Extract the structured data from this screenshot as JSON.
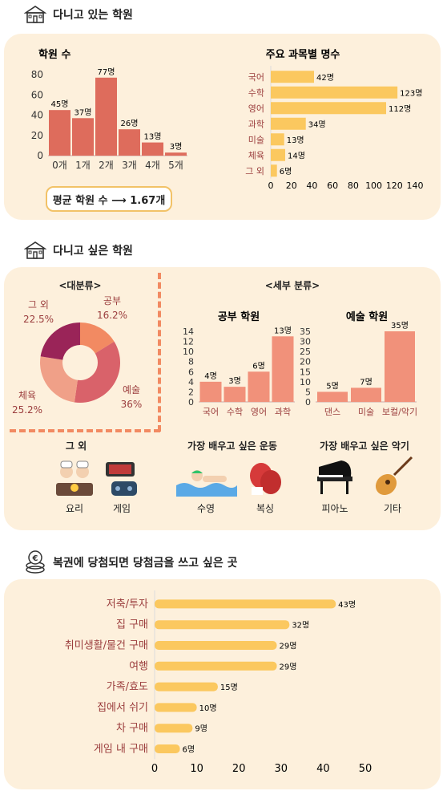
{
  "section1": {
    "title": "다니고 있는 학원",
    "chart_academies": {
      "title": "학원 수",
      "categories": [
        "0개",
        "1개",
        "2개",
        "3개",
        "4개",
        "5개"
      ],
      "values": [
        45,
        37,
        77,
        26,
        13,
        3
      ],
      "value_labels": [
        "45명",
        "37명",
        "77명",
        "26명",
        "13명",
        "3명"
      ],
      "y_ticks": [
        "0",
        "20",
        "40",
        "60",
        "80"
      ],
      "ylim": [
        0,
        80
      ]
    },
    "average": "평균 학원 수 ⟶ 1.67개",
    "chart_subjects": {
      "title": "주요 과목별 명수",
      "categories": [
        "국어",
        "수학",
        "영어",
        "과학",
        "미술",
        "체육",
        "그 외"
      ],
      "values": [
        42,
        123,
        112,
        34,
        13,
        14,
        6
      ],
      "value_labels": [
        "42명",
        "123명",
        "112명",
        "34명",
        "13명",
        "14명",
        "6명"
      ],
      "x_ticks": [
        "0",
        "20",
        "40",
        "60",
        "80",
        "100",
        "120",
        "140"
      ],
      "xlim": [
        0,
        140
      ]
    }
  },
  "section2": {
    "title": "다니고 싶은 학원",
    "big_category": {
      "title": "<대분류>",
      "slices": [
        {
          "name": "공부",
          "label": "16.2%",
          "value": 16.2,
          "color": "#f28a62"
        },
        {
          "name": "예술",
          "label": "36%",
          "value": 36,
          "color": "#d9626a"
        },
        {
          "name": "체육",
          "label": "25.2%",
          "value": 25.2,
          "color": "#f0a088"
        },
        {
          "name": "그 외",
          "label": "22.5%",
          "value": 22.5,
          "color": "#9a2458"
        }
      ]
    },
    "detail_title": "<세부 분류>",
    "study": {
      "title": "공부 학원",
      "categories": [
        "국어",
        "수학",
        "영어",
        "과학"
      ],
      "values": [
        4,
        3,
        6,
        13
      ],
      "value_labels": [
        "4명",
        "3명",
        "6명",
        "13명"
      ],
      "y_ticks": [
        "0",
        "2",
        "4",
        "6",
        "8",
        "10",
        "12",
        "14"
      ],
      "ylim": [
        0,
        14
      ]
    },
    "art": {
      "title": "예술 학원",
      "categories": [
        "댄스",
        "미술",
        "보컬/악기"
      ],
      "values": [
        5,
        7,
        35
      ],
      "value_labels": [
        "5명",
        "7명",
        "35명"
      ],
      "y_ticks": [
        "0",
        "5",
        "10",
        "15",
        "20",
        "25",
        "30",
        "35"
      ],
      "ylim": [
        0,
        35
      ]
    },
    "others": {
      "groups": [
        {
          "title": "그 외",
          "items": [
            "요리",
            "게임"
          ]
        },
        {
          "title": "가장 배우고 싶은 운동",
          "items": [
            "수영",
            "복싱"
          ]
        },
        {
          "title": "가장 배우고 싶은 악기",
          "items": [
            "피아노",
            "기타"
          ]
        }
      ]
    }
  },
  "section3": {
    "title": "복권에 당첨되면 당첨금을 쓰고 싶은 곳",
    "chart_lottery": {
      "categories": [
        "저축/투자",
        "집 구매",
        "취미생활/물건 구매",
        "여행",
        "가족/효도",
        "집에서 쉬기",
        "차 구매",
        "게임 내 구매"
      ],
      "values": [
        43,
        32,
        29,
        29,
        15,
        10,
        9,
        6
      ],
      "value_labels": [
        "43명",
        "32명",
        "29명",
        "29명",
        "15명",
        "10명",
        "9명",
        "6명"
      ],
      "x_ticks": [
        "0",
        "10",
        "20",
        "30",
        "40",
        "50"
      ],
      "xlim": [
        0,
        50
      ]
    }
  },
  "colors": {
    "bar_red": "#de6c5c",
    "bar_coral": "#f1917a",
    "bar_yellow": "#fbc85f",
    "panel": "#fdf0dc",
    "label_red": "#9b3d3d"
  }
}
